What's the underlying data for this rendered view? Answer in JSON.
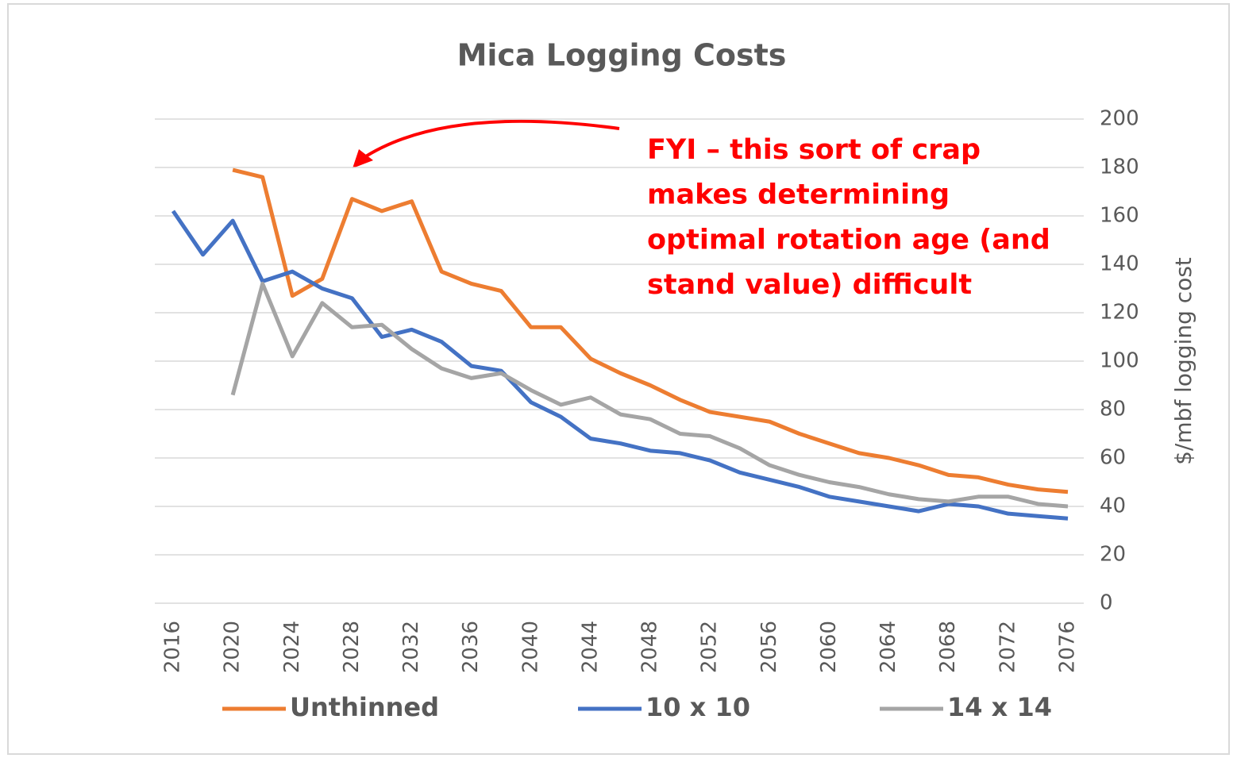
{
  "chart_data": {
    "type": "line",
    "title": "Mica Logging Costs",
    "y_axis_label": "$/mbf logging cost",
    "categories": [
      "2016",
      null,
      "2020",
      null,
      "2024",
      null,
      "2028",
      null,
      "2032",
      null,
      "2036",
      null,
      "2040",
      null,
      "2044",
      null,
      "2048",
      null,
      "2052",
      null,
      "2056",
      null,
      "2060",
      null,
      "2064",
      null,
      "2068",
      null,
      "2072",
      null,
      "2076"
    ],
    "series": [
      {
        "name": "Unthinned",
        "color": "#ed7d31",
        "values": [
          null,
          null,
          179,
          176,
          127,
          134,
          167,
          162,
          166,
          137,
          132,
          129,
          114,
          114,
          101,
          95,
          90,
          84,
          79,
          77,
          75,
          70,
          66,
          62,
          60,
          57,
          53,
          52,
          49,
          47,
          46
        ]
      },
      {
        "name": "10 x 10",
        "color": "#4472c4",
        "values": [
          162,
          144,
          158,
          133,
          137,
          130,
          126,
          110,
          113,
          108,
          98,
          96,
          83,
          77,
          68,
          66,
          63,
          62,
          59,
          54,
          51,
          48,
          44,
          42,
          40,
          38,
          41,
          40,
          37,
          36,
          35
        ]
      },
      {
        "name": "14 x 14",
        "color": "#a5a5a5",
        "values": [
          null,
          null,
          86,
          132,
          102,
          124,
          114,
          115,
          105,
          97,
          93,
          95,
          88,
          82,
          85,
          78,
          76,
          70,
          69,
          64,
          57,
          53,
          50,
          48,
          45,
          43,
          42,
          44,
          44,
          41,
          40
        ]
      }
    ],
    "ylim": [
      0,
      200
    ],
    "yticks": [
      0,
      20,
      40,
      60,
      80,
      100,
      120,
      140,
      160,
      180,
      200
    ],
    "y_axis_side": "right",
    "grid": true,
    "annotation": {
      "lines": [
        "FYI – this sort of crap",
        "makes determining",
        "optimal rotation age (and",
        "stand value) difficult"
      ],
      "color": "#ff0000"
    }
  }
}
